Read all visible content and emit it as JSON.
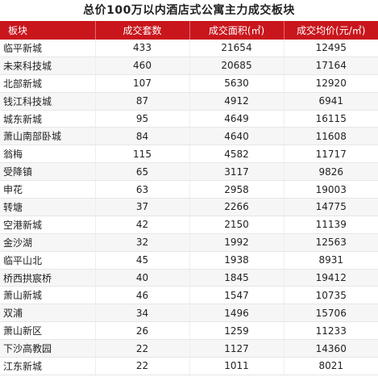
{
  "title": "总价100万以内酒店式公寓主力成交板块",
  "headers": [
    "板块",
    "成交套数",
    "成交面积(㎡)",
    "成交均价(元/㎡)"
  ],
  "rows": [
    {
      "name": "临平新城",
      "units": "433",
      "area": "21654",
      "price": "12495"
    },
    {
      "name": "未来科技城",
      "units": "460",
      "area": "20685",
      "price": "17164"
    },
    {
      "name": "北部新城",
      "units": "107",
      "area": "5630",
      "price": "12920"
    },
    {
      "name": "钱江科技城",
      "units": "87",
      "area": "4912",
      "price": "6941"
    },
    {
      "name": "城东新城",
      "units": "95",
      "area": "4649",
      "price": "16115"
    },
    {
      "name": "萧山南部卧城",
      "units": "84",
      "area": "4640",
      "price": "11608"
    },
    {
      "name": "翁梅",
      "units": "115",
      "area": "4582",
      "price": "11717"
    },
    {
      "name": "受降镇",
      "units": "65",
      "area": "3117",
      "price": "9826"
    },
    {
      "name": "申花",
      "units": "63",
      "area": "2958",
      "price": "19003"
    },
    {
      "name": "转塘",
      "units": "37",
      "area": "2266",
      "price": "14775"
    },
    {
      "name": "空港新城",
      "units": "42",
      "area": "2150",
      "price": "11139"
    },
    {
      "name": "金沙湖",
      "units": "32",
      "area": "1992",
      "price": "12563"
    },
    {
      "name": "临平山北",
      "units": "45",
      "area": "1938",
      "price": "8931"
    },
    {
      "name": "桥西拱宸桥",
      "units": "40",
      "area": "1845",
      "price": "19412"
    },
    {
      "name": "萧山新城",
      "units": "46",
      "area": "1547",
      "price": "10735"
    },
    {
      "name": "双浦",
      "units": "34",
      "area": "1496",
      "price": "15706"
    },
    {
      "name": "萧山新区",
      "units": "26",
      "area": "1259",
      "price": "11233"
    },
    {
      "name": "下沙高教园",
      "units": "22",
      "area": "1127",
      "price": "14360"
    },
    {
      "name": "江东新城",
      "units": "22",
      "area": "1011",
      "price": "8021"
    }
  ]
}
